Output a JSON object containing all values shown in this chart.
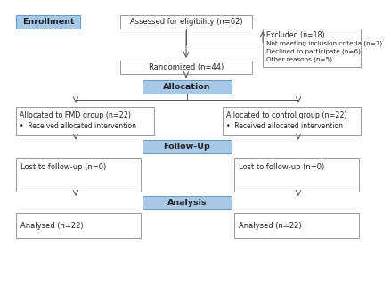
{
  "background_color": "#ffffff",
  "blue_box_color": "#a8c8e8",
  "blue_box_edge": "#6699cc",
  "white_box_edge": "#999999",
  "text_color": "#222222",
  "enrollment_label": "Enrollment",
  "assessed_text": "Assessed for eligibility (n=62)",
  "excluded_line1": "Excluded (n=18)",
  "excluded_line2": "Not meeting inclusion criteria (n=7)",
  "excluded_line3": "Declined to participate (n=6)",
  "excluded_line4": "Other reasons (n=5)",
  "randomized_text": "Randomized (n=44)",
  "allocation_label": "Allocation",
  "fmd_line1": "Allocated to FMD group (n=22)",
  "fmd_line2": "•  Received allocated intervention",
  "ctrl_line1": "Allocated to control group (n=22)",
  "ctrl_line2": "•  Received allocated intervention",
  "followup_label": "Follow-Up",
  "lost_fmd_text": "Lost to follow-up (n=0)",
  "lost_ctrl_text": "Lost to follow-up (n=0)",
  "analysis_label": "Analysis",
  "analysed_fmd_text": "Analysed (n=22)",
  "analysed_ctrl_text": "Analysed (n=22)",
  "arrow_color": "#555555",
  "line_width": 0.7
}
